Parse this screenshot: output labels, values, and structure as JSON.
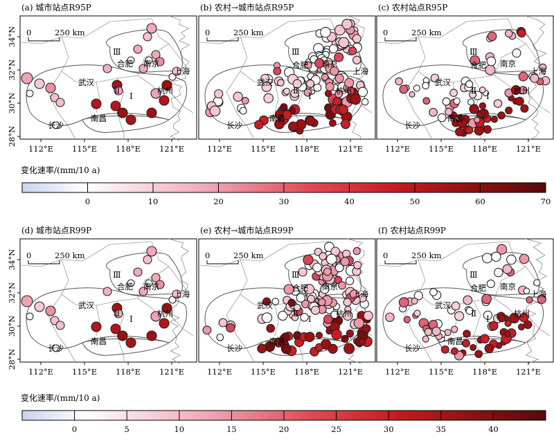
{
  "units_label": "变化速率/(mm/10 a)",
  "panels_top": [
    {
      "label": "(a) 城市站点R95P"
    },
    {
      "label": "(b) 农村→城市站点R95P"
    },
    {
      "label": "(c) 农村站点R95P"
    }
  ],
  "panels_bottom": [
    {
      "label": "(d) 城市站点R99P"
    },
    {
      "label": "(e) 农村→城市站点R99P"
    },
    {
      "label": "(f) 农村站点R99P"
    }
  ],
  "x_ticks": [
    "112°E",
    "115°E",
    "118°E",
    "121°E"
  ],
  "y_ticks": [
    "34°N",
    "32°N",
    "30°N",
    "28°N"
  ],
  "scale_bar": {
    "zero": "0",
    "distance": "250 km"
  },
  "cities": [
    "合肥",
    "南京",
    "武汉",
    "上海",
    "杭州",
    "南昌",
    "长沙"
  ],
  "regions": [
    "Ⅰ",
    "Ⅱ",
    "Ⅲ"
  ],
  "colorbar_top": {
    "ticks": [
      "0",
      "10",
      "20",
      "30",
      "40",
      "50",
      "60",
      "70"
    ],
    "min": -10,
    "max": 70
  },
  "colorbar_bottom": {
    "ticks": [
      "0",
      "5",
      "10",
      "15",
      "20",
      "25",
      "30",
      "35",
      "40"
    ],
    "min": -5,
    "max": 45
  },
  "colors": {
    "low": "#d7dcf2",
    "mid": "#f2a3b5",
    "high": "#c61a20",
    "max": "#5a0a0a"
  }
}
